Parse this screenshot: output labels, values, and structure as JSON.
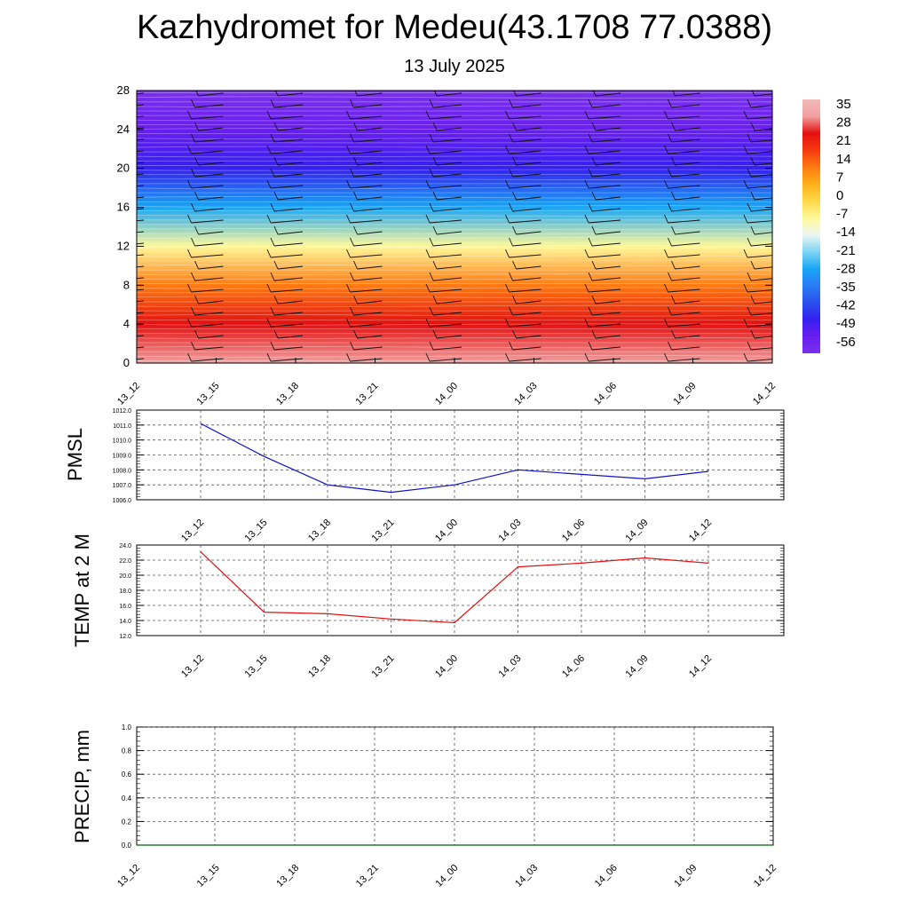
{
  "title": "Kazhydromet for Medeu(43.1708 77.0388)",
  "subtitle": "13 July 2025",
  "chart_data": [
    {
      "type": "heatmap",
      "description_field": "vertical cross-section of temperature with wind barbs",
      "x_labels": [
        "13_12",
        "13_15",
        "13_18",
        "13_21",
        "14_00",
        "14_03",
        "14_06",
        "14_09",
        "14_12"
      ],
      "y_ticks": [
        "0",
        "4",
        "8",
        "12",
        "16",
        "20",
        "24",
        "28"
      ],
      "ylim": [
        0,
        28
      ],
      "colorbar_labels": [
        "35",
        "28",
        "21",
        "14",
        "7",
        "0",
        "-7",
        "-14",
        "-21",
        "-28",
        "-35",
        "-42",
        "-49",
        "-56"
      ],
      "colorbar_range": [
        -63,
        42
      ],
      "temperature_profile": [
        {
          "y": 0,
          "value": 35
        },
        {
          "y": 4,
          "value": 28
        },
        {
          "y": 8,
          "value": 14
        },
        {
          "y": 12,
          "value": -7
        },
        {
          "y": 16,
          "value": -28
        },
        {
          "y": 20,
          "value": -49
        },
        {
          "y": 24,
          "value": -56
        },
        {
          "y": 28,
          "value": -63
        }
      ]
    },
    {
      "type": "line",
      "ylabel": "PMSL",
      "x_labels": [
        "13_12",
        "13_15",
        "13_18",
        "13_21",
        "14_00",
        "14_03",
        "14_06",
        "14_09",
        "14_12"
      ],
      "y_ticks": [
        "1006.0",
        "1007.0",
        "1008.0",
        "1009.0",
        "1010.0",
        "1011.0",
        "1012.0"
      ],
      "ylim": [
        1006,
        1012
      ],
      "color": "#1010c8",
      "values": [
        1011.1,
        1008.9,
        1007.0,
        1006.5,
        1007.0,
        1008.0,
        1007.7,
        1007.4,
        1007.9
      ]
    },
    {
      "type": "line",
      "ylabel": "TEMP at 2 M",
      "x_labels": [
        "13_12",
        "13_15",
        "13_18",
        "13_21",
        "14_00",
        "14_03",
        "14_06",
        "14_09",
        "14_12"
      ],
      "y_ticks": [
        "12.0",
        "14.0",
        "16.0",
        "18.0",
        "20.0",
        "22.0",
        "24.0"
      ],
      "ylim": [
        12,
        24
      ],
      "color": "#e01010",
      "values": [
        23.1,
        15.1,
        14.9,
        14.2,
        13.7,
        21.1,
        21.6,
        22.3,
        21.6
      ]
    },
    {
      "type": "line",
      "ylabel": "PRECIP, mm",
      "x_labels": [
        "13_12",
        "13_15",
        "13_18",
        "13_21",
        "14_00",
        "14_03",
        "14_06",
        "14_09",
        "14_12"
      ],
      "y_ticks": [
        "0.0",
        "0.2",
        "0.4",
        "0.6",
        "0.8",
        "1.0"
      ],
      "ylim": [
        0,
        1
      ],
      "color": "#006400",
      "values": [
        0,
        0,
        0,
        0,
        0,
        0,
        0,
        0,
        0
      ]
    }
  ]
}
